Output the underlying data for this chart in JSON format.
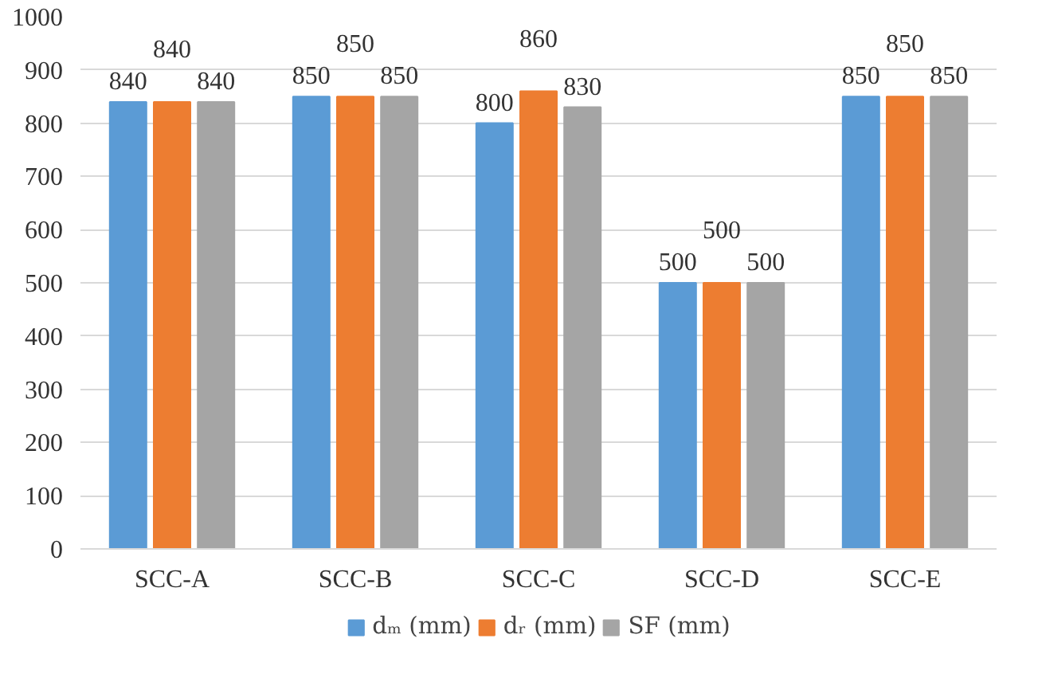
{
  "chart_data": {
    "type": "bar",
    "categories": [
      "SCC-A",
      "SCC-B",
      "SCC-C",
      "SCC-D",
      "SCC-E"
    ],
    "series": [
      {
        "name": "dₘ (mm)",
        "color": "#5b9bd5",
        "values": [
          840,
          850,
          800,
          500,
          850
        ]
      },
      {
        "name": "dᵣ (mm)",
        "color": "#ed7d31",
        "values": [
          840,
          850,
          860,
          500,
          850
        ]
      },
      {
        "name": "SF (mm)",
        "color": "#a5a5a5",
        "values": [
          840,
          850,
          830,
          500,
          850
        ]
      }
    ],
    "ylim": [
      0,
      1000
    ],
    "yticks": [
      0,
      100,
      200,
      300,
      400,
      500,
      600,
      700,
      800,
      900,
      1000
    ],
    "grid": "y",
    "legend": "bottom",
    "data_labels": true
  }
}
